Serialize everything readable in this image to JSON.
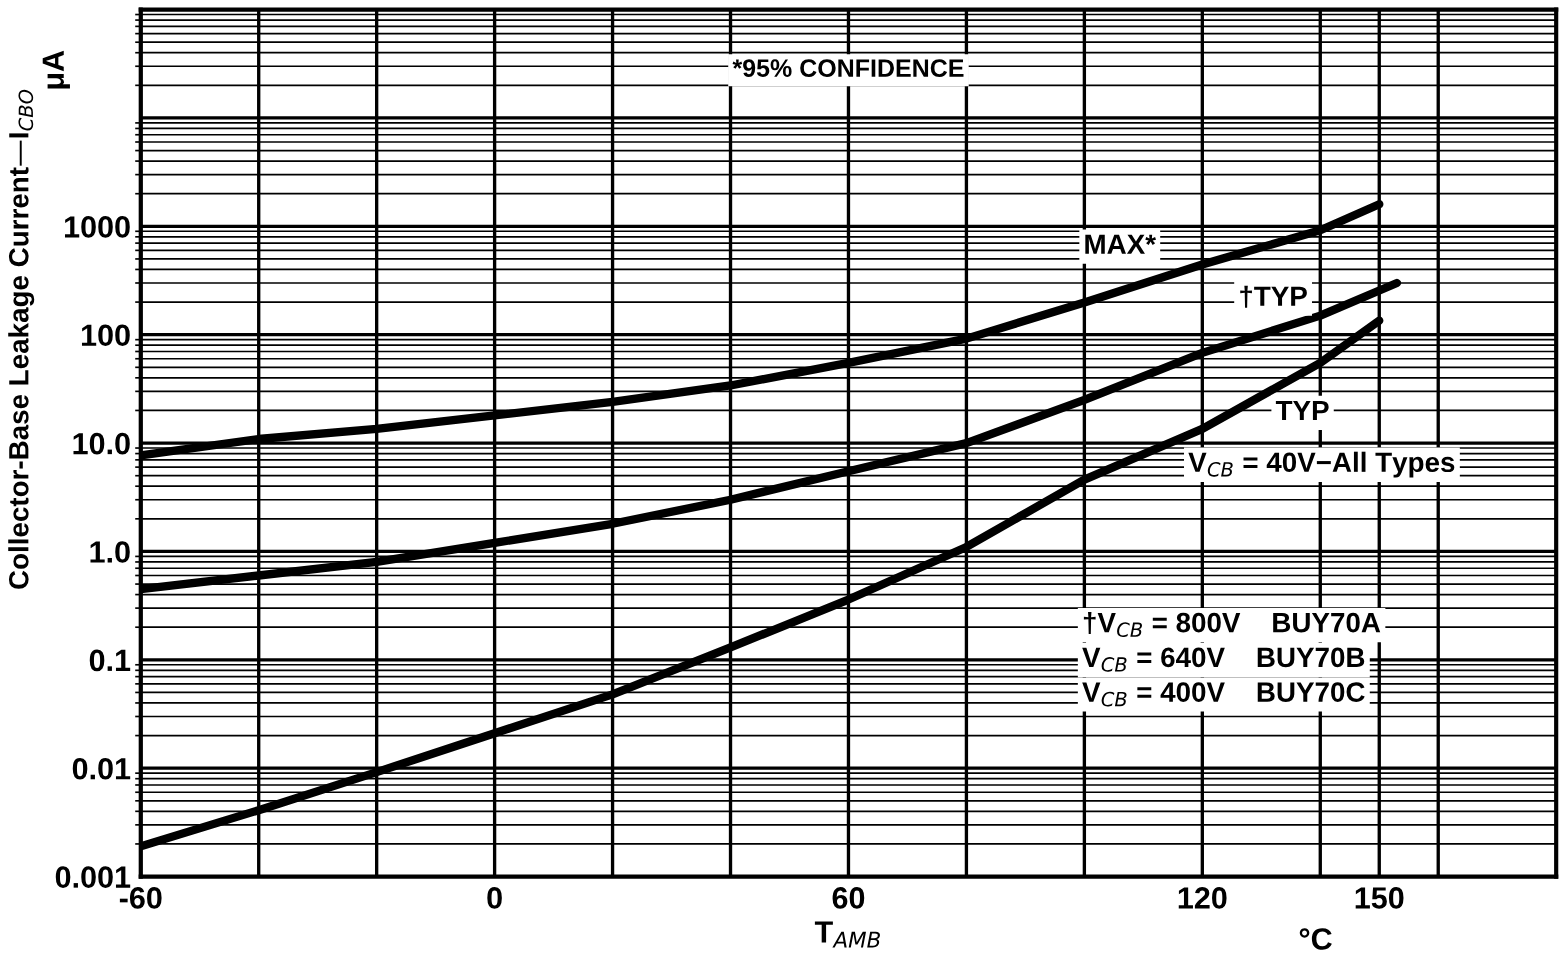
{
  "chart_data": {
    "type": "line",
    "xlabel": "T$_{AMB}$",
    "ylabel": "Collector-Base Leakage Current—I$_{CBO}$",
    "log": "y",
    "xlim": [
      -60,
      180
    ],
    "xticks": [
      -60,
      {
        "value": -40,
        "label": null
      },
      {
        "value": -20,
        "label": null
      },
      0,
      {
        "value": 20,
        "label": null
      },
      {
        "value": 40,
        "label": null
      },
      60,
      {
        "value": 80,
        "label": null
      },
      {
        "value": 100,
        "label": null
      },
      120,
      {
        "value": 140,
        "label": null
      },
      150,
      {
        "value": 160,
        "label": null
      }
    ],
    "ylim": [
      0.001,
      100000
    ],
    "yticks": [
      {
        "value": 0.001,
        "label": "0.001"
      },
      {
        "value": 0.01,
        "label": "0.01"
      },
      {
        "value": 0.1,
        "label": "0.1"
      },
      {
        "value": 1,
        "label": "1.0"
      },
      {
        "value": 10,
        "label": "10.0"
      },
      100,
      1000,
      {
        "value": 10000,
        "label": null
      }
    ],
    "grid": true,
    "series": [
      {
        "color": "#000000",
        "x": [
          -60,
          -40,
          -20,
          0,
          20,
          40,
          60,
          80,
          100,
          120,
          140,
          150
        ],
        "values": [
          7.7,
          10.9,
          13.5,
          18,
          24,
          34,
          55,
          92,
          198,
          445,
          920,
          1600
        ]
      },
      {
        "color": "#000000",
        "x": [
          -60,
          -40,
          -20,
          0,
          20,
          40,
          60,
          80,
          100,
          120,
          140,
          153
        ],
        "values": [
          0.45,
          0.6,
          0.8,
          1.2,
          1.8,
          3,
          5.5,
          10,
          25,
          68,
          150,
          300
        ]
      },
      {
        "color": "#000000",
        "x": [
          -60,
          -40,
          -20,
          0,
          20,
          40,
          60,
          80,
          100,
          120,
          140,
          150
        ],
        "values": [
          0.0019,
          0.0041,
          0.0092,
          0.021,
          0.048,
          0.13,
          0.36,
          1.1,
          4.6,
          13.5,
          55,
          135
        ]
      }
    ],
    "annotations": [
      {
        "text": "MAX*",
        "x": 106,
        "y": 650
      },
      {
        "text": "†TYP",
        "x": 132,
        "y": 215
      },
      {
        "text": "TYP",
        "x": 137,
        "y": 19
      },
      "V$_{CB}$ = 40V−All Types",
      "*95% CONFIDENCE",
      "†V$_{CB}$ = 800V    BUY70A",
      "V$_{CB}$ = 640V    BUY70B",
      "V$_{CB}$ = 400V    BUY70C",
      "μA",
      "°C"
    ]
  }
}
